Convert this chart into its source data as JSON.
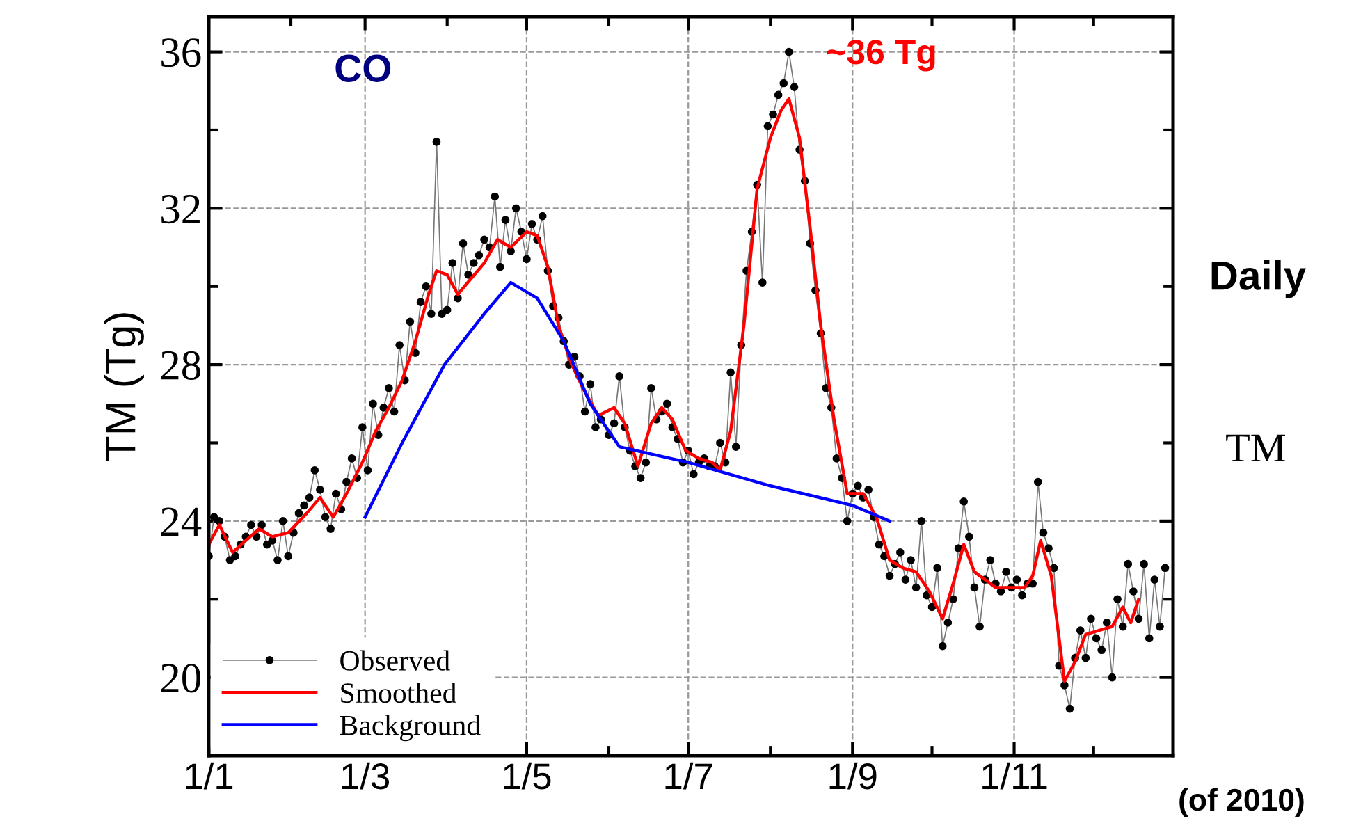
{
  "chart_data": {
    "type": "line",
    "ylabel": "TM (Tg)",
    "annotations": [
      "CO",
      "~36 Tg",
      "(of 2010)",
      "Daily",
      "TM"
    ],
    "xlim": [
      "2010-01-01",
      "2010-12-31"
    ],
    "xticks": [
      {
        "value": "2010-01-01",
        "label": "1/1"
      },
      {
        "value": "2010-02-01",
        "label": null
      },
      {
        "value": "2010-03-01",
        "label": "1/3"
      },
      {
        "value": "2010-04-01",
        "label": null
      },
      {
        "value": "2010-05-01",
        "label": "1/5"
      },
      {
        "value": "2010-06-01",
        "label": null
      },
      {
        "value": "2010-07-01",
        "label": "1/7"
      },
      {
        "value": "2010-08-01",
        "label": null
      },
      {
        "value": "2010-09-01",
        "label": "1/9"
      },
      {
        "value": "2010-10-01",
        "label": null
      },
      {
        "value": "2010-11-01",
        "label": "1/11"
      },
      {
        "value": "2010-12-01",
        "label": null
      }
    ],
    "ylim": [
      18,
      36.9
    ],
    "yticks": [
      {
        "value": 18,
        "label": null
      },
      20,
      {
        "value": 22,
        "label": null
      },
      24,
      {
        "value": 26,
        "label": null
      },
      28,
      {
        "value": 30,
        "label": null
      },
      32,
      {
        "value": 34,
        "label": null
      },
      36
    ],
    "grid": true,
    "legend": "bottom left",
    "series": [
      {
        "name": "Observed",
        "color": "#000000",
        "marker": "circle",
        "x": [
          "2010-01-01",
          "2010-01-03",
          "2010-01-05",
          "2010-01-07",
          "2010-01-09",
          "2010-01-11",
          "2010-01-13",
          "2010-01-15",
          "2010-01-17",
          "2010-01-19",
          "2010-01-21",
          "2010-01-23",
          "2010-01-25",
          "2010-01-27",
          "2010-01-29",
          "2010-01-31",
          "2010-02-02",
          "2010-02-04",
          "2010-02-06",
          "2010-02-08",
          "2010-02-10",
          "2010-02-12",
          "2010-02-14",
          "2010-02-16",
          "2010-02-18",
          "2010-02-20",
          "2010-02-22",
          "2010-02-24",
          "2010-02-26",
          "2010-02-28",
          "2010-03-02",
          "2010-03-04",
          "2010-03-06",
          "2010-03-08",
          "2010-03-10",
          "2010-03-12",
          "2010-03-14",
          "2010-03-16",
          "2010-03-18",
          "2010-03-20",
          "2010-03-22",
          "2010-03-24",
          "2010-03-26",
          "2010-03-28",
          "2010-03-30",
          "2010-04-01",
          "2010-04-03",
          "2010-04-05",
          "2010-04-07",
          "2010-04-09",
          "2010-04-11",
          "2010-04-13",
          "2010-04-15",
          "2010-04-17",
          "2010-04-19",
          "2010-04-21",
          "2010-04-23",
          "2010-04-25",
          "2010-04-27",
          "2010-04-29",
          "2010-05-01",
          "2010-05-03",
          "2010-05-05",
          "2010-05-07",
          "2010-05-09",
          "2010-05-11",
          "2010-05-13",
          "2010-05-15",
          "2010-05-17",
          "2010-05-19",
          "2010-05-21",
          "2010-05-23",
          "2010-05-25",
          "2010-05-27",
          "2010-05-29",
          "2010-06-01",
          "2010-06-03",
          "2010-06-05",
          "2010-06-07",
          "2010-06-09",
          "2010-06-11",
          "2010-06-13",
          "2010-06-15",
          "2010-06-17",
          "2010-06-19",
          "2010-06-21",
          "2010-06-23",
          "2010-06-25",
          "2010-06-27",
          "2010-06-29",
          "2010-07-01",
          "2010-07-03",
          "2010-07-05",
          "2010-07-07",
          "2010-07-09",
          "2010-07-11",
          "2010-07-13",
          "2010-07-15",
          "2010-07-17",
          "2010-07-19",
          "2010-07-21",
          "2010-07-23",
          "2010-07-25",
          "2010-07-27",
          "2010-07-29",
          "2010-07-31",
          "2010-08-02",
          "2010-08-04",
          "2010-08-06",
          "2010-08-08",
          "2010-08-10",
          "2010-08-12",
          "2010-08-14",
          "2010-08-16",
          "2010-08-18",
          "2010-08-20",
          "2010-08-22",
          "2010-08-24",
          "2010-08-26",
          "2010-08-28",
          "2010-08-30",
          "2010-09-01",
          "2010-09-03",
          "2010-09-05",
          "2010-09-07",
          "2010-09-09",
          "2010-09-11",
          "2010-09-13",
          "2010-09-15",
          "2010-09-17",
          "2010-09-19",
          "2010-09-21",
          "2010-09-23",
          "2010-09-25",
          "2010-09-27",
          "2010-09-29",
          "2010-10-01",
          "2010-10-03",
          "2010-10-05",
          "2010-10-07",
          "2010-10-09",
          "2010-10-11",
          "2010-10-13",
          "2010-10-15",
          "2010-10-17",
          "2010-10-19",
          "2010-10-21",
          "2010-10-23",
          "2010-10-25",
          "2010-10-27",
          "2010-10-29",
          "2010-10-31",
          "2010-11-02",
          "2010-11-04",
          "2010-11-06",
          "2010-11-08",
          "2010-11-10",
          "2010-11-12",
          "2010-11-14",
          "2010-11-16",
          "2010-11-18",
          "2010-11-20",
          "2010-11-22",
          "2010-11-24",
          "2010-11-26",
          "2010-11-28",
          "2010-11-30",
          "2010-12-02",
          "2010-12-04",
          "2010-12-06",
          "2010-12-08",
          "2010-12-10",
          "2010-12-12",
          "2010-12-14",
          "2010-12-16",
          "2010-12-18",
          "2010-12-20",
          "2010-12-22",
          "2010-12-24",
          "2010-12-26",
          "2010-12-28"
        ],
        "values": [
          23.1,
          24.1,
          24.0,
          23.6,
          23.0,
          23.1,
          23.4,
          23.6,
          23.9,
          23.6,
          23.9,
          23.4,
          23.5,
          23.0,
          24.0,
          23.1,
          23.7,
          24.2,
          24.4,
          24.6,
          25.3,
          24.8,
          24.1,
          23.8,
          24.7,
          24.3,
          25.0,
          25.6,
          25.1,
          26.4,
          25.3,
          27.0,
          26.2,
          26.9,
          27.4,
          26.8,
          28.5,
          27.6,
          29.1,
          28.3,
          29.6,
          30.0,
          29.3,
          33.7,
          29.3,
          29.4,
          30.6,
          29.7,
          31.1,
          30.3,
          30.6,
          30.8,
          31.2,
          31.0,
          32.3,
          30.5,
          31.7,
          30.9,
          32.0,
          31.4,
          30.7,
          31.6,
          31.2,
          31.8,
          30.4,
          29.5,
          29.2,
          28.6,
          28.0,
          28.2,
          27.7,
          26.8,
          27.5,
          26.4,
          26.6,
          26.2,
          26.5,
          27.7,
          26.4,
          25.8,
          25.4,
          25.1,
          25.5,
          27.4,
          26.6,
          26.8,
          27.0,
          26.4,
          26.1,
          25.5,
          25.8,
          25.2,
          25.5,
          25.6,
          25.4,
          25.4,
          26.0,
          25.5,
          27.8,
          25.9,
          28.5,
          30.4,
          31.4,
          32.6,
          30.1,
          34.1,
          34.4,
          34.9,
          35.2,
          36.0,
          35.1,
          33.5,
          32.7,
          31.1,
          29.9,
          28.8,
          27.4,
          26.9,
          25.6,
          25.1,
          24.0,
          24.7,
          24.9,
          24.6,
          24.8,
          24.1,
          23.4,
          23.1,
          22.6,
          22.9,
          23.2,
          22.5,
          23.0,
          22.3,
          24.0,
          22.1,
          21.8,
          22.8,
          20.8,
          21.4,
          22.0,
          23.3,
          24.5,
          23.6,
          22.3,
          21.3,
          22.5,
          23.0,
          22.4,
          22.2,
          22.7,
          22.3,
          22.5,
          22.1,
          22.4,
          22.4,
          25.0,
          23.7,
          23.3,
          22.8,
          20.3,
          19.8,
          19.2,
          20.5,
          21.2,
          20.5,
          21.5,
          21.0,
          20.7,
          21.4,
          20.0,
          22.0,
          21.3,
          22.9,
          22.2,
          21.5,
          22.9,
          21.0,
          22.5,
          21.3,
          22.8
        ]
      },
      {
        "name": "Smoothed",
        "color": "#ff0000",
        "marker": "none",
        "x": [
          "2010-01-01",
          "2010-01-05",
          "2010-01-10",
          "2010-01-15",
          "2010-01-20",
          "2010-01-25",
          "2010-01-31",
          "2010-02-07",
          "2010-02-12",
          "2010-02-17",
          "2010-02-22",
          "2010-02-28",
          "2010-03-05",
          "2010-03-10",
          "2010-03-15",
          "2010-03-20",
          "2010-03-25",
          "2010-03-28",
          "2010-04-01",
          "2010-04-05",
          "2010-04-10",
          "2010-04-15",
          "2010-04-20",
          "2010-04-25",
          "2010-05-01",
          "2010-05-05",
          "2010-05-09",
          "2010-05-13",
          "2010-05-18",
          "2010-05-23",
          "2010-05-28",
          "2010-06-03",
          "2010-06-07",
          "2010-06-12",
          "2010-06-17",
          "2010-06-21",
          "2010-06-25",
          "2010-06-30",
          "2010-07-05",
          "2010-07-10",
          "2010-07-13",
          "2010-07-17",
          "2010-07-22",
          "2010-07-27",
          "2010-08-01",
          "2010-08-05",
          "2010-08-08",
          "2010-08-12",
          "2010-08-16",
          "2010-08-20",
          "2010-08-25",
          "2010-08-30",
          "2010-09-05",
          "2010-09-10",
          "2010-09-15",
          "2010-09-20",
          "2010-09-25",
          "2010-09-30",
          "2010-10-05",
          "2010-10-09",
          "2010-10-13",
          "2010-10-17",
          "2010-10-21",
          "2010-10-25",
          "2010-10-31",
          "2010-11-05",
          "2010-11-08",
          "2010-11-11",
          "2010-11-15",
          "2010-11-20",
          "2010-11-24",
          "2010-11-28",
          "2010-12-03",
          "2010-12-08",
          "2010-12-12",
          "2010-12-15",
          "2010-12-18"
        ],
        "values": [
          23.4,
          23.9,
          23.2,
          23.5,
          23.8,
          23.6,
          23.7,
          24.2,
          24.6,
          24.1,
          24.7,
          25.5,
          26.3,
          26.9,
          27.6,
          28.6,
          29.8,
          30.4,
          30.3,
          29.8,
          30.2,
          30.6,
          31.2,
          31.0,
          31.4,
          31.3,
          30.5,
          29.0,
          28.0,
          27.3,
          26.7,
          26.9,
          26.5,
          25.4,
          26.5,
          26.9,
          26.6,
          25.8,
          25.6,
          25.5,
          25.3,
          26.3,
          29.0,
          32.5,
          33.8,
          34.5,
          34.8,
          33.8,
          31.5,
          29.0,
          26.6,
          24.7,
          24.7,
          24.1,
          23.0,
          22.8,
          22.7,
          22.2,
          21.5,
          22.4,
          23.4,
          22.7,
          22.5,
          22.3,
          22.3,
          22.3,
          22.6,
          23.5,
          22.6,
          19.9,
          20.4,
          21.1,
          21.2,
          21.3,
          21.8,
          21.4,
          22.0
        ]
      },
      {
        "name": "Background",
        "color": "#0000ff",
        "marker": "none",
        "x": [
          "2010-03-01",
          "2010-03-15",
          "2010-03-31",
          "2010-04-15",
          "2010-04-25",
          "2010-05-05",
          "2010-05-15",
          "2010-05-25",
          "2010-06-05",
          "2010-07-01",
          "2010-08-01",
          "2010-09-01",
          "2010-09-15"
        ],
        "values": [
          24.1,
          26.0,
          28.0,
          29.3,
          30.1,
          29.7,
          28.6,
          27.0,
          25.9,
          25.5,
          24.9,
          24.4,
          24.0
        ]
      }
    ]
  }
}
